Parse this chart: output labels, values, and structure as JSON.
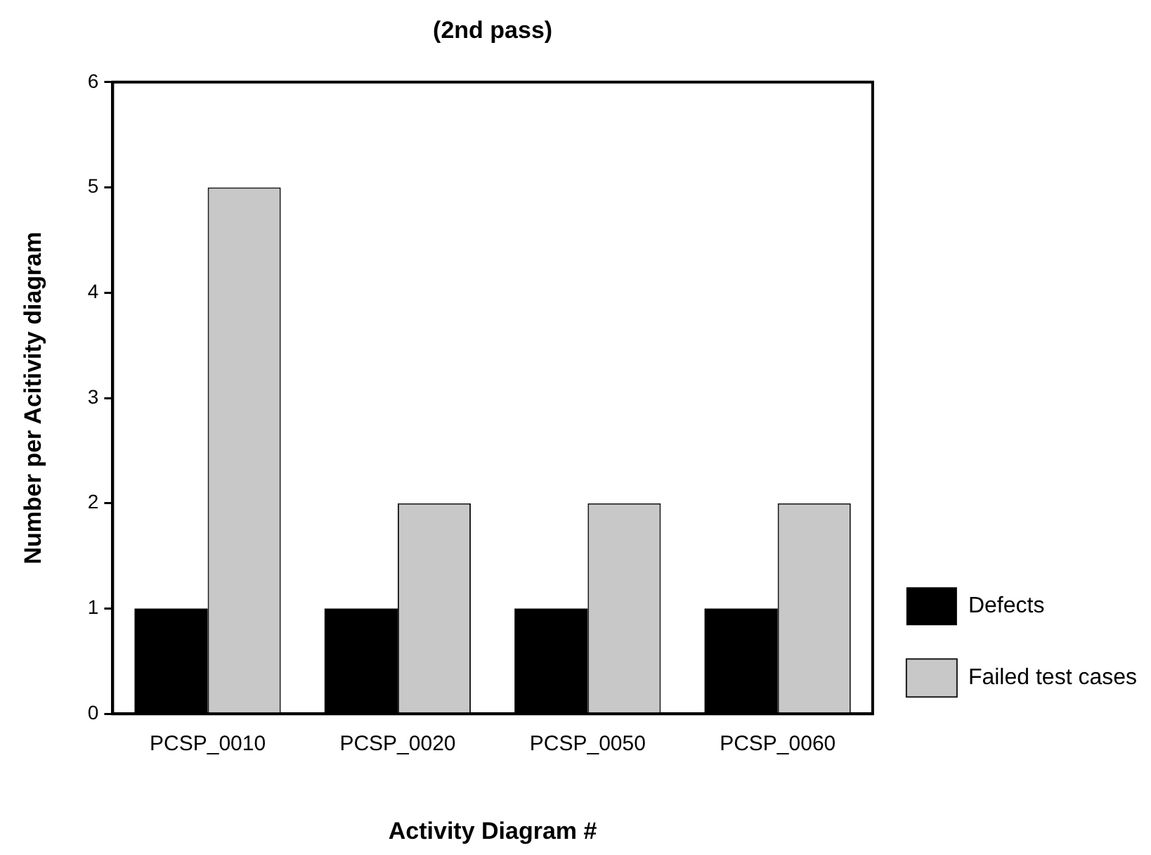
{
  "chart_data": {
    "type": "bar",
    "title": "(2nd pass)",
    "xlabel": "Activity Diagram #",
    "ylabel": "Number per Acitivity diagram",
    "categories": [
      "PCSP_0010",
      "PCSP_0020",
      "PCSP_0050",
      "PCSP_0060"
    ],
    "series": [
      {
        "name": "Defects",
        "color": "#000000",
        "values": [
          1,
          1,
          1,
          1
        ]
      },
      {
        "name": "Failed test cases",
        "color": "#c8c8c8",
        "values": [
          5,
          2,
          2,
          2
        ]
      }
    ],
    "ylim": [
      0,
      6
    ],
    "yticks": [
      0,
      1,
      2,
      3,
      4,
      5,
      6
    ],
    "grid": false,
    "legend": "right"
  }
}
